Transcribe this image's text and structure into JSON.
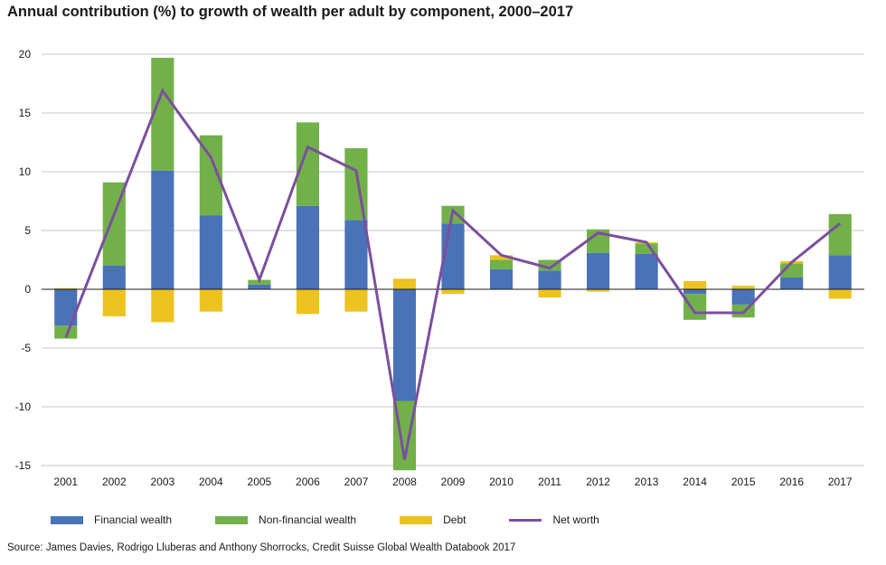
{
  "title": "Annual contribution (%) to growth of wealth per adult by component, 2000–2017",
  "source": "Source: James Davies, Rodrigo Lluberas and Anthony Shorrocks, Credit Suisse Global Wealth Databook 2017",
  "colors": {
    "financial": "#4a72b8",
    "nonfinancial": "#72b04a",
    "debt": "#ecc320",
    "networth": "#7b4f9e",
    "grid": "#b0b0b0",
    "zero": "#1a1a1a"
  },
  "legend": [
    {
      "key": "financial",
      "label": "Financial wealth",
      "type": "bar"
    },
    {
      "key": "nonfinancial",
      "label": "Non-financial wealth",
      "type": "bar"
    },
    {
      "key": "debt",
      "label": "Debt",
      "type": "bar"
    },
    {
      "key": "networth",
      "label": "Net worth",
      "type": "line"
    }
  ],
  "chart_data": {
    "type": "bar",
    "stacked": true,
    "title": "Annual contribution (%) to growth of wealth per adult by component, 2000–2017",
    "xlabel": "",
    "ylabel": "",
    "ylim": [
      -15,
      20
    ],
    "yticks": [
      20,
      15,
      10,
      5,
      0,
      -5,
      -10,
      -15
    ],
    "grid": true,
    "legend_position": "bottom",
    "categories": [
      "2001",
      "2002",
      "2003",
      "2004",
      "2005",
      "2006",
      "2007",
      "2008",
      "2009",
      "2010",
      "2011",
      "2012",
      "2013",
      "2014",
      "2015",
      "2016",
      "2017"
    ],
    "series": [
      {
        "name": "Financial wealth",
        "key": "financial",
        "type": "bar",
        "values": [
          -3.1,
          2.0,
          10.1,
          6.3,
          0.4,
          7.1,
          5.9,
          -9.5,
          5.6,
          1.7,
          1.6,
          3.1,
          3.0,
          -0.4,
          -1.3,
          1.0,
          2.9
        ]
      },
      {
        "name": "Non-financial wealth",
        "key": "nonfinancial",
        "type": "bar",
        "values": [
          -1.1,
          7.1,
          9.6,
          6.8,
          0.4,
          7.1,
          6.1,
          -5.9,
          1.5,
          0.8,
          0.9,
          2.0,
          0.9,
          -2.2,
          -1.1,
          1.2,
          3.5
        ]
      },
      {
        "name": "Debt",
        "key": "debt",
        "type": "bar",
        "values": [
          0.1,
          -2.3,
          -2.8,
          -1.9,
          0.0,
          -2.1,
          -1.9,
          0.9,
          -0.4,
          0.4,
          -0.7,
          -0.2,
          0.1,
          0.7,
          0.3,
          0.2,
          -0.8
        ]
      },
      {
        "name": "Net worth",
        "key": "networth",
        "type": "line",
        "values": [
          -4.1,
          6.4,
          16.9,
          11.2,
          0.8,
          12.1,
          10.1,
          -14.5,
          6.7,
          2.9,
          1.8,
          4.8,
          4.0,
          -2.0,
          -2.0,
          2.3,
          5.6
        ]
      }
    ]
  }
}
